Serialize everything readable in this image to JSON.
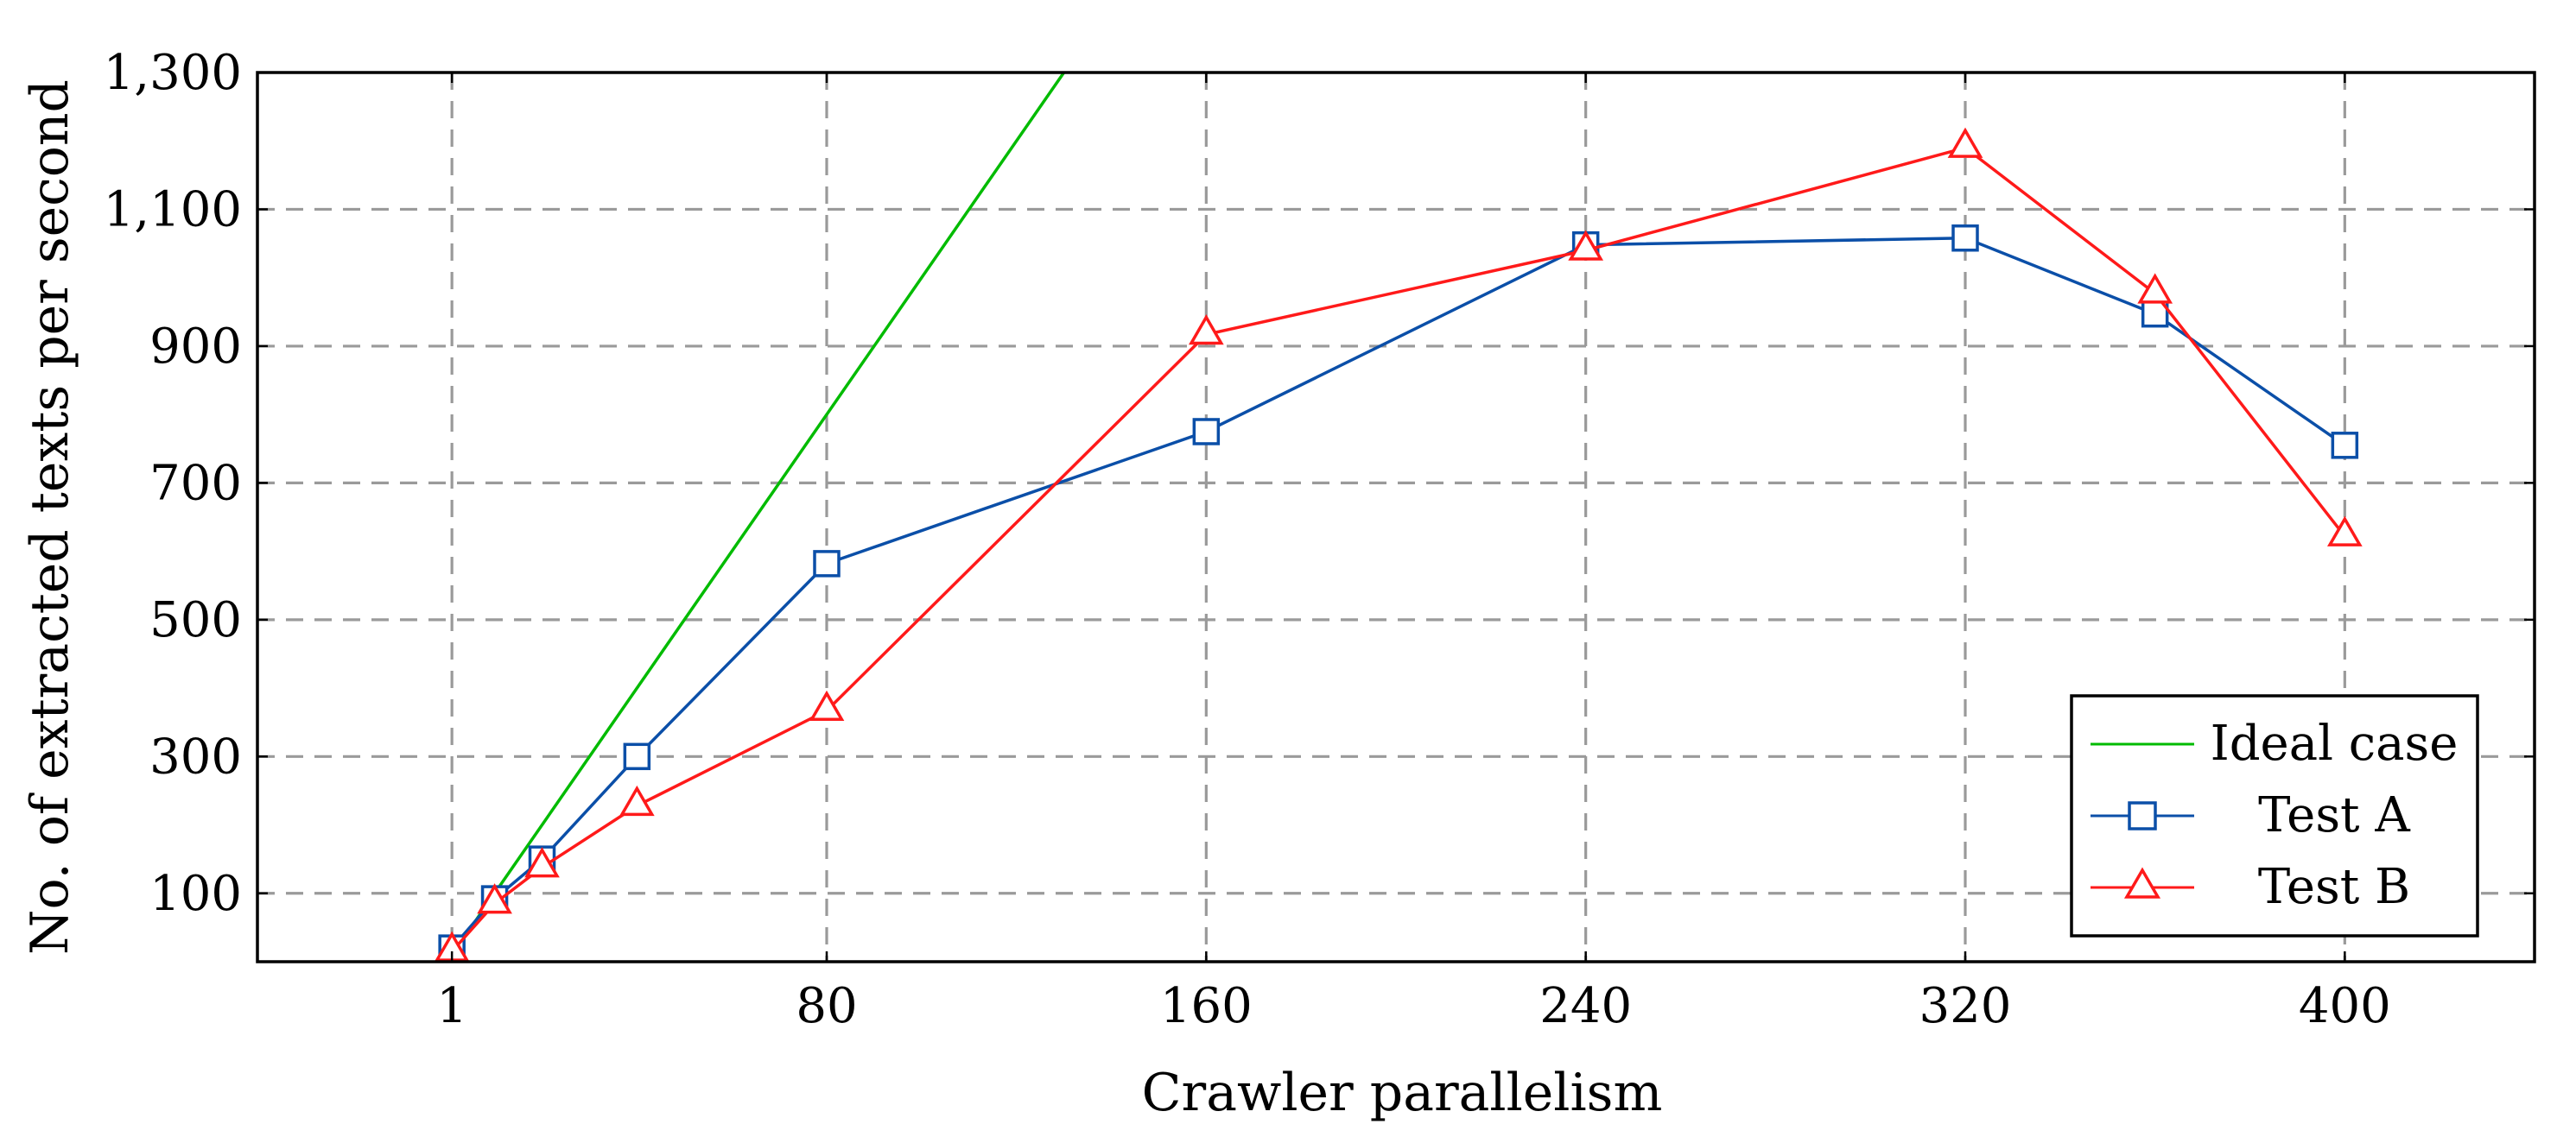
{
  "chart_data": {
    "type": "line",
    "title": "",
    "xlabel": "Crawler parallelism",
    "ylabel": "No. of extracted texts per second",
    "xlim": [
      -40,
      440
    ],
    "ylim": [
      0,
      1300
    ],
    "x_ticks": [
      1,
      80,
      160,
      240,
      320,
      400
    ],
    "x_tick_labels": [
      "1",
      "80",
      "160",
      "240",
      "320",
      "400"
    ],
    "y_ticks": [
      100,
      300,
      500,
      700,
      900,
      1100,
      1300
    ],
    "y_tick_labels": [
      "100",
      "300",
      "500",
      "700",
      "900",
      "1,100",
      "1,300"
    ],
    "grid": true,
    "legend_position": "bottom-right",
    "series": [
      {
        "name": "Ideal case",
        "color": "#00bb00",
        "marker": "none",
        "x": [
          1,
          130
        ],
        "y": [
          10,
          1300
        ]
      },
      {
        "name": "Test A",
        "color": "#0b4fa8",
        "marker": "square",
        "x": [
          1,
          10,
          20,
          40,
          80,
          160,
          240,
          320,
          360,
          400
        ],
        "y": [
          20,
          92,
          150,
          300,
          582,
          775,
          1048,
          1058,
          947,
          755
        ]
      },
      {
        "name": "Test B",
        "color": "#ff1a1a",
        "marker": "triangle",
        "x": [
          1,
          10,
          20,
          40,
          80,
          160,
          240,
          320,
          360,
          400
        ],
        "y": [
          15,
          85,
          138,
          228,
          367,
          917,
          1040,
          1190,
          977,
          622
        ]
      }
    ]
  }
}
